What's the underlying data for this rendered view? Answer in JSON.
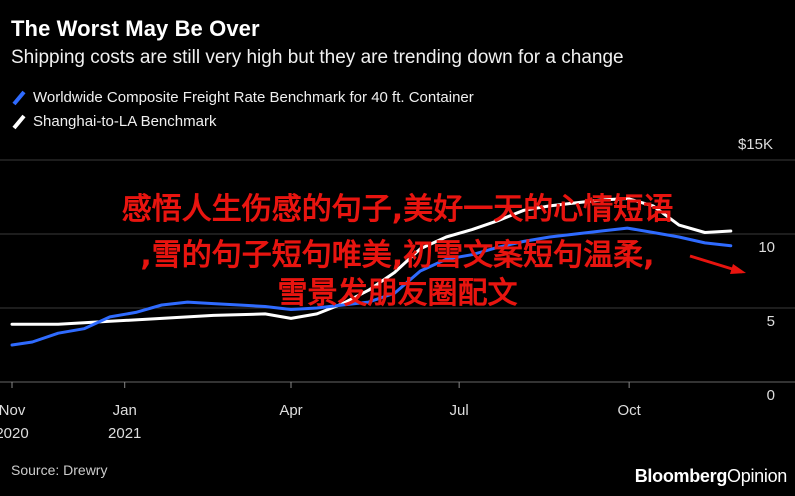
{
  "header": {
    "title": "The Worst May Be Over",
    "subtitle": "Shipping costs are still very high but they are trending down for a change"
  },
  "footer": {
    "source": "Source: Drewry",
    "brand_main": "Bloomberg",
    "brand_suffix": "Opinion"
  },
  "overlay_text": {
    "line1": "感悟人生伤感的句子,美好一天的心情短语",
    "line2": ",雪的句子短句唯美,初雪文案短句温柔,",
    "line3": "雪景发朋友圈配文"
  },
  "colors": {
    "background": "#000000",
    "series_blue": "#2f6bff",
    "series_white": "#ffffff",
    "grid": "#3a3a3a",
    "overlay_text": "#e8140f"
  },
  "chart_data": {
    "type": "line",
    "unit_label": "$15K",
    "y_ticks": [
      {
        "value": 15,
        "label": "$15K"
      },
      {
        "value": 10,
        "label": "10"
      },
      {
        "value": 5,
        "label": "5"
      },
      {
        "value": 0,
        "label": "0"
      }
    ],
    "ylim": [
      0,
      15
    ],
    "xlim": [
      "2020-11-01",
      "2021-11-30"
    ],
    "x_ticks": [
      {
        "date": "2020-11-01",
        "label": "Nov",
        "sublabel": "2020"
      },
      {
        "date": "2021-01-01",
        "label": "Jan",
        "sublabel": "2021"
      },
      {
        "date": "2021-04-01",
        "label": "Apr",
        "sublabel": ""
      },
      {
        "date": "2021-07-01",
        "label": "Jul",
        "sublabel": ""
      },
      {
        "date": "2021-10-01",
        "label": "Oct",
        "sublabel": ""
      }
    ],
    "grid": true,
    "series": [
      {
        "name": "Worldwide Composite Freight Rate Benchmark for 40 ft. Container",
        "color": "#2f6bff",
        "points": [
          [
            "2020-11-01",
            2.5
          ],
          [
            "2020-11-12",
            2.7
          ],
          [
            "2020-11-26",
            3.3
          ],
          [
            "2020-12-10",
            3.6
          ],
          [
            "2020-12-24",
            4.4
          ],
          [
            "2021-01-07",
            4.7
          ],
          [
            "2021-01-21",
            5.2
          ],
          [
            "2021-02-04",
            5.4
          ],
          [
            "2021-02-18",
            5.3
          ],
          [
            "2021-03-04",
            5.2
          ],
          [
            "2021-03-18",
            5.1
          ],
          [
            "2021-04-01",
            4.9
          ],
          [
            "2021-04-15",
            5.0
          ],
          [
            "2021-04-29",
            5.2
          ],
          [
            "2021-05-13",
            5.4
          ],
          [
            "2021-05-27",
            6.0
          ],
          [
            "2021-06-10",
            7.5
          ],
          [
            "2021-06-24",
            8.3
          ],
          [
            "2021-07-08",
            8.6
          ],
          [
            "2021-07-22",
            9.1
          ],
          [
            "2021-08-05",
            9.5
          ],
          [
            "2021-08-19",
            9.8
          ],
          [
            "2021-09-02",
            10.0
          ],
          [
            "2021-09-16",
            10.2
          ],
          [
            "2021-09-30",
            10.4
          ],
          [
            "2021-10-14",
            10.1
          ],
          [
            "2021-10-28",
            9.8
          ],
          [
            "2021-11-11",
            9.4
          ],
          [
            "2021-11-25",
            9.2
          ]
        ]
      },
      {
        "name": "Shanghai-to-LA Benchmark",
        "color": "#ffffff",
        "points": [
          [
            "2020-11-01",
            3.9
          ],
          [
            "2020-11-26",
            3.9
          ],
          [
            "2020-12-24",
            4.1
          ],
          [
            "2021-01-21",
            4.3
          ],
          [
            "2021-02-18",
            4.5
          ],
          [
            "2021-03-18",
            4.6
          ],
          [
            "2021-04-01",
            4.3
          ],
          [
            "2021-04-15",
            4.6
          ],
          [
            "2021-04-29",
            5.3
          ],
          [
            "2021-05-13",
            6.2
          ],
          [
            "2021-05-27",
            7.4
          ],
          [
            "2021-06-10",
            9.0
          ],
          [
            "2021-06-24",
            9.8
          ],
          [
            "2021-07-08",
            10.3
          ],
          [
            "2021-07-22",
            10.9
          ],
          [
            "2021-08-05",
            11.6
          ],
          [
            "2021-08-19",
            11.9
          ],
          [
            "2021-09-02",
            12.1
          ],
          [
            "2021-09-16",
            12.3
          ],
          [
            "2021-09-30",
            12.4
          ],
          [
            "2021-10-14",
            11.9
          ],
          [
            "2021-10-28",
            10.6
          ],
          [
            "2021-11-11",
            10.1
          ],
          [
            "2021-11-25",
            10.2
          ]
        ]
      }
    ]
  }
}
